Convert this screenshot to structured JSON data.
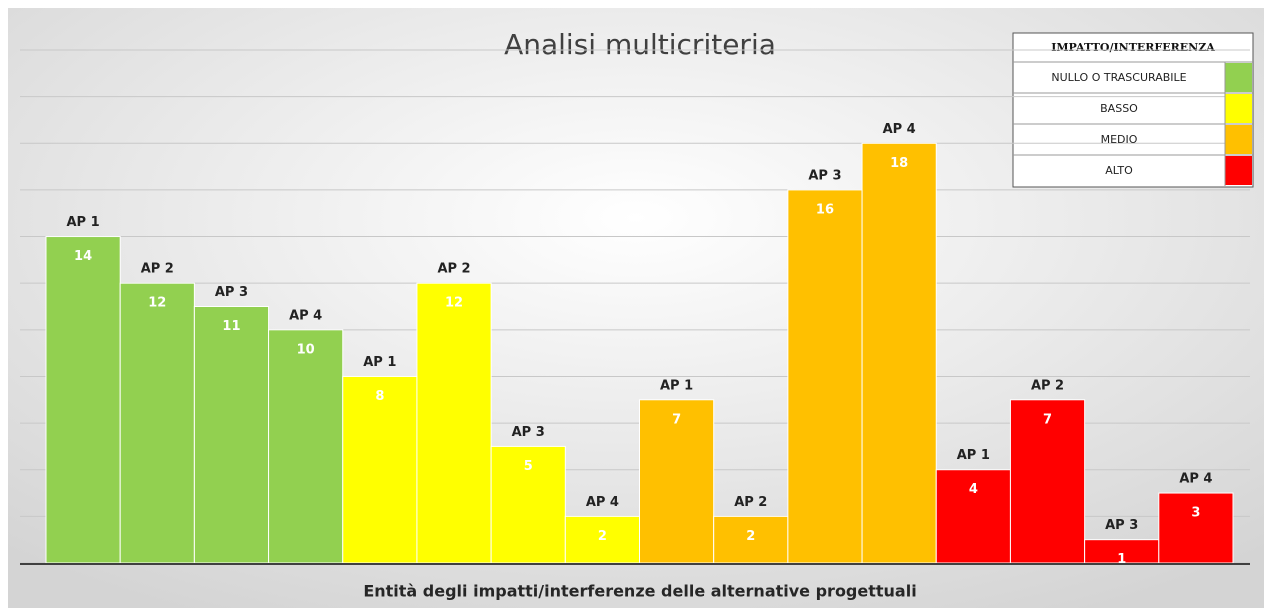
{
  "chart_data": {
    "type": "bar",
    "title": "Analisi multicriteria",
    "x_label": "Entità degli impatti/interferenze delle alternative progettuali",
    "legend_title": "IMPATTO/INTERFERENZA",
    "categories": [
      "AP 1",
      "AP 2",
      "AP 3",
      "AP 4"
    ],
    "series": [
      {
        "name": "NULLO O TRASCURABILE",
        "color": "#92d050",
        "values": [
          14,
          12,
          11,
          10
        ]
      },
      {
        "name": "BASSO",
        "color": "#ffff00",
        "values": [
          8,
          12,
          5,
          2
        ]
      },
      {
        "name": "MEDIO",
        "color": "#ffc000",
        "values": [
          7,
          2,
          16,
          18
        ]
      },
      {
        "name": "ALTO",
        "color": "#ff0000",
        "values": [
          4,
          7,
          1,
          3
        ]
      }
    ],
    "ylim": [
      0,
      22
    ],
    "yticks": [
      0,
      2,
      4,
      6,
      8,
      10,
      12,
      14,
      16,
      18,
      20,
      22
    ],
    "grid": true
  }
}
